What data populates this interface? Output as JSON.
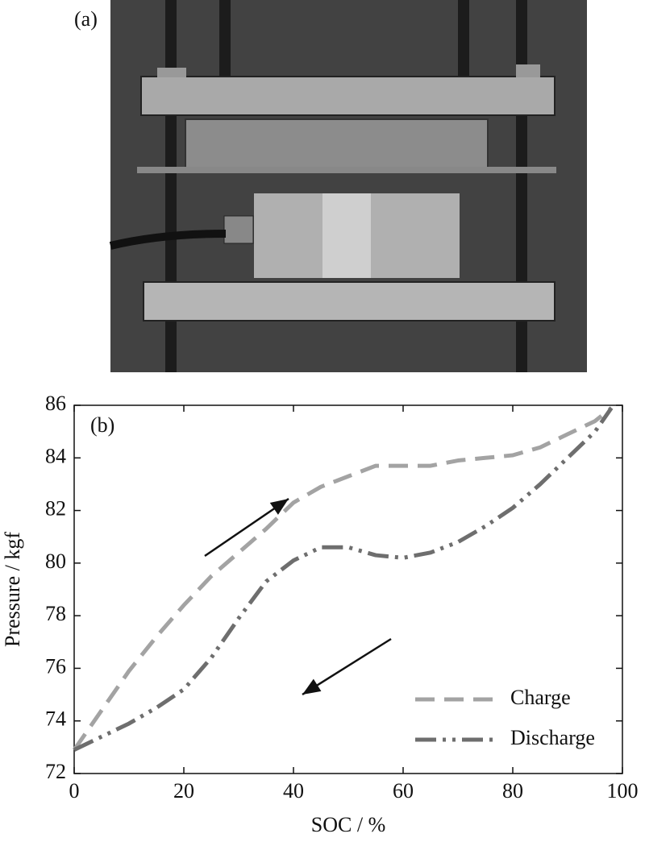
{
  "figure": {
    "photo_label": "(a)"
  },
  "chart_data": {
    "type": "line",
    "panel_label": "(b)",
    "x_label": "SOC / %",
    "y_label": "Pressure / kgf",
    "xlim": [
      0,
      100
    ],
    "ylim": [
      72,
      86
    ],
    "xticks": [
      0,
      20,
      40,
      60,
      80,
      100
    ],
    "yticks": [
      72,
      74,
      76,
      78,
      80,
      82,
      84,
      86
    ],
    "legend": "lower right",
    "x": [
      0,
      5,
      10,
      15,
      20,
      25,
      30,
      35,
      40,
      45,
      50,
      55,
      60,
      65,
      70,
      75,
      80,
      85,
      90,
      95,
      98
    ],
    "series": [
      {
        "name": "Charge",
        "color": "#a3a3a3",
        "dash": "dashed",
        "values": [
          72.9,
          74.4,
          75.9,
          77.2,
          78.4,
          79.5,
          80.4,
          81.3,
          82.3,
          82.9,
          83.3,
          83.7,
          83.7,
          83.7,
          83.9,
          84.0,
          84.1,
          84.4,
          84.9,
          85.4,
          85.9
        ]
      },
      {
        "name": "Discharge",
        "color": "#6e6e6e",
        "dash": "dashdotdot",
        "values": [
          72.9,
          73.4,
          73.9,
          74.5,
          75.2,
          76.4,
          77.9,
          79.3,
          80.1,
          80.6,
          80.6,
          80.3,
          80.2,
          80.4,
          80.8,
          81.4,
          82.1,
          83.0,
          84.0,
          85.0,
          85.9
        ]
      }
    ]
  }
}
